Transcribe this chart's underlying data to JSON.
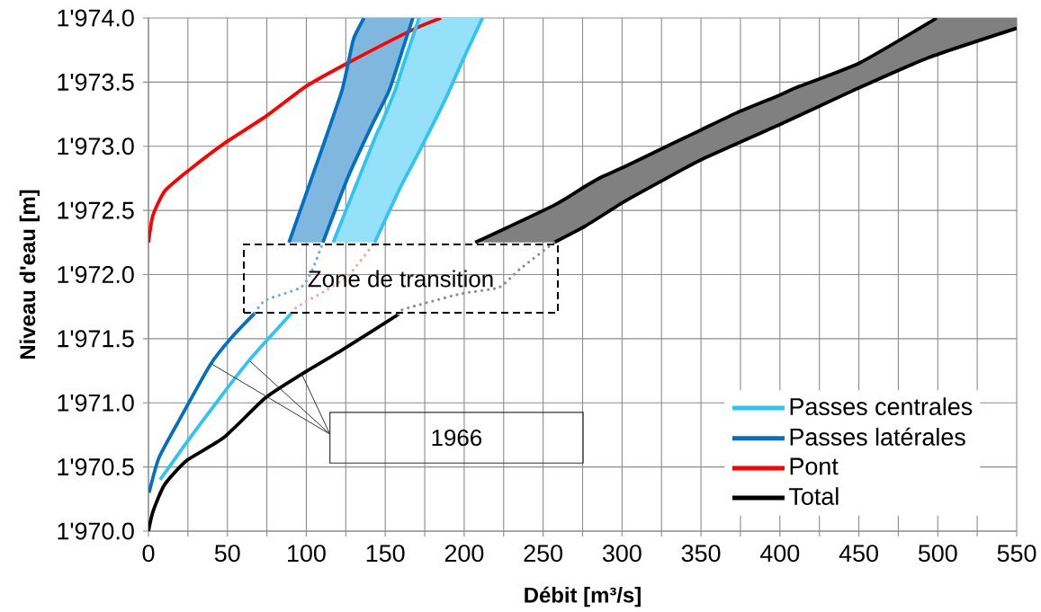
{
  "chart_data": {
    "type": "line",
    "xlabel": "Débit [m³/s]",
    "ylabel": "Niveau d'eau [m]",
    "xlim": [
      0,
      550
    ],
    "ylim": [
      1970,
      1974
    ],
    "xticks": [
      0,
      {
        "value": 25,
        "label": null
      },
      50,
      {
        "value": 75,
        "label": null
      },
      100,
      {
        "value": 125,
        "label": null
      },
      150,
      {
        "value": 175,
        "label": null
      },
      200,
      {
        "value": 225,
        "label": null
      },
      250,
      {
        "value": 275,
        "label": null
      },
      300,
      {
        "value": 325,
        "label": null
      },
      350,
      {
        "value": 375,
        "label": null
      },
      400,
      {
        "value": 425,
        "label": null
      },
      450,
      {
        "value": 475,
        "label": null
      },
      500,
      {
        "value": 525,
        "label": null
      },
      550
    ],
    "yticks": [
      {
        "value": 1970,
        "label": "1'970.0"
      },
      {
        "value": 1970.5,
        "label": "1'970.5"
      },
      {
        "value": 1971,
        "label": "1'971.0"
      },
      {
        "value": 1971.5,
        "label": "1'971.5"
      },
      {
        "value": 1972,
        "label": "1'972.0"
      },
      {
        "value": 1972.5,
        "label": "1'972.5"
      },
      {
        "value": 1973,
        "label": "1'973.0"
      },
      {
        "value": 1973.5,
        "label": "1'973.5"
      },
      {
        "value": 1974,
        "label": "1'974.0"
      }
    ],
    "grid": true,
    "legend": "bottom right",
    "annotations": [
      "Zone de transition",
      "1966"
    ],
    "series": [
      {
        "name": "Passes centrales",
        "color": "#2ec4f4",
        "x": [
          7.4,
          25.3,
          47.8,
          63.7,
          79.6,
          90.8
        ],
        "values": [
          1970.4,
          1970.71,
          1971.08,
          1971.33,
          1971.55,
          1971.7
        ]
      },
      {
        "name": "Passes latérales",
        "color": "#0070c0",
        "x": [
          0.4,
          6.6,
          19.7,
          39.3,
          53.4,
          67.4
        ],
        "values": [
          1970.3,
          1970.57,
          1970.87,
          1971.3,
          1971.52,
          1971.7
        ]
      },
      {
        "name": "Pont",
        "color": "#ff0000",
        "x": [
          0,
          2.8,
          10.3,
          25.3,
          47.8,
          74,
          100.2,
          126.4,
          167.6,
          185.4
        ],
        "values": [
          1972.25,
          1972.46,
          1972.65,
          1972.81,
          1973.02,
          1973.23,
          1973.47,
          1973.65,
          1973.91,
          1974.0
        ]
      },
      {
        "name": "Total",
        "color": "#000000",
        "x": [
          0,
          2.8,
          10.1,
          24.2,
          47.8,
          74.2,
          96.6,
          122.5,
          158.4
        ],
        "values": [
          1970.0,
          1970.15,
          1970.36,
          1970.55,
          1970.73,
          1971.04,
          1971.22,
          1971.41,
          1971.69
        ]
      },
      {
        "color": "#2ec4f4",
        "x": [
          143.3,
          160,
          173.2,
          188.2,
          199.4,
          211.6
        ],
        "values": [
          1972.25,
          1972.69,
          1973.0,
          1973.37,
          1973.68,
          1974
        ]
      },
      {
        "color": "#f4a6a6",
        "line_style": "dotted",
        "x": [
          90.8,
          94.4,
          111.4,
          126.4,
          143.3
        ],
        "values": [
          1971.7,
          1971.75,
          1971.87,
          1971.99,
          1972.25
        ]
      },
      {
        "color": "#0070c0",
        "x": [
          110.5,
          126.4,
          141.4,
          152.6,
          161.9,
          167.5
        ],
        "values": [
          1972.25,
          1972.76,
          1973.16,
          1973.44,
          1973.79,
          1974
        ]
      },
      {
        "color": "#6fa8dc",
        "line_style": "dotted",
        "x": [
          67.4,
          74,
          96.5,
          103.9,
          110.5
        ],
        "values": [
          1971.7,
          1971.8,
          1971.9,
          1972.04,
          1972.25
        ]
      },
      {
        "color": "#000000",
        "x": [
          257,
          277,
          301.6,
          326.6,
          351,
          400,
          445.5,
          494,
          550
        ],
        "values": [
          1972.25,
          1972.38,
          1972.57,
          1972.74,
          1972.9,
          1973.17,
          1973.43,
          1973.69,
          1973.92
        ]
      },
      {
        "color": "#8c8c8c",
        "line_style": "dotted",
        "x": [
          158.4,
          161.8,
          197.8,
          222,
          235,
          257
        ],
        "values": [
          1971.69,
          1971.73,
          1971.85,
          1971.9,
          1972.04,
          1972.25
        ]
      },
      {
        "color": "#2ec4f4",
        "x": [
          117,
          143.3,
          147,
          156.4,
          160,
          165.7,
          171.4,
          173.2,
          188.2,
          199.4,
          211.6
        ],
        "values": [
          1972.25,
          1973.06,
          1973.16,
          1973.44,
          1973.58,
          1973.79,
          1974,
          null,
          null,
          null,
          null
        ],
        "lower": [
          1972.25,
          1972.25,
          1972.35,
          1972.6,
          1972.69,
          1972.82,
          1972.95,
          1973.0,
          1973.37,
          1973.68,
          1974
        ],
        "upper": [
          1972.25,
          1973.06,
          1973.16,
          1973.44,
          1973.58,
          1973.79,
          1974,
          1974,
          1974,
          1974,
          1974
        ]
      },
      {
        "color": "#0070c0",
        "x": [
          89,
          110.5,
          115,
          122.7,
          126.4,
          130,
          136.5,
          141.4,
          152.6,
          161.9,
          167.5
        ],
        "values": [
          1972.25,
          1973.0,
          1973.16,
          1973.44,
          1973.64,
          1973.84,
          1974,
          null,
          null,
          null,
          null
        ],
        "lower": [
          1972.25,
          1972.25,
          1972.39,
          1972.64,
          1972.76,
          1972.86,
          1973.03,
          1973.16,
          1973.44,
          1973.79,
          1974
        ],
        "upper": [
          1972.25,
          1973.0,
          1973.16,
          1973.44,
          1973.64,
          1973.84,
          1974,
          1974,
          1974,
          1974,
          1974
        ]
      },
      {
        "color": "#000000",
        "x": [
          207,
          257,
          277,
          287,
          301.6,
          326.6,
          350.5,
          372.5,
          400,
          411,
          450.5,
          494,
          499,
          550
        ],
        "values": [
          1972.25,
          1972.54,
          1972.69,
          1972.76,
          1972.84,
          1972.99,
          1973.13,
          1973.26,
          1973.4,
          1973.46,
          1973.65,
          1973.96,
          1974,
          null
        ],
        "lower": [
          1972.25,
          1972.25,
          1972.38,
          1972.45,
          1972.57,
          1972.74,
          1972.9,
          1973.02,
          1973.17,
          1973.23,
          1973.45,
          1973.69,
          1973.71,
          1973.92
        ],
        "upper": [
          1972.25,
          1972.54,
          1972.69,
          1972.76,
          1972.84,
          1972.99,
          1973.13,
          1973.26,
          1973.4,
          1973.46,
          1973.65,
          1973.96,
          1974,
          1974
        ]
      }
    ]
  }
}
